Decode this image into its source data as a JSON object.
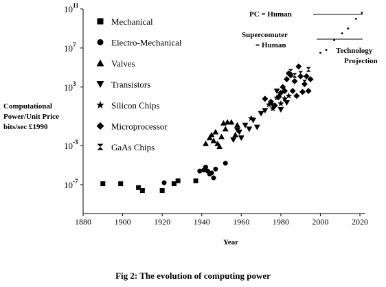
{
  "chart_data": {
    "type": "scatter",
    "title": "",
    "caption": "Fig 2:  The evolution of computing power",
    "xlabel": "Year",
    "ylabel_lines": [
      "Computational",
      "Power/Unit Price",
      "bits/sec £1990"
    ],
    "xlim": [
      1880,
      2020
    ],
    "ylim_log10": [
      -9,
      11
    ],
    "x_ticks": [
      1880,
      1900,
      1920,
      1940,
      1960,
      1980,
      2000,
      2020
    ],
    "y_ticks": [
      {
        "base": "10",
        "exp": "11",
        "log10": 11
      },
      {
        "base": "10",
        "exp": "7",
        "log10": 7
      },
      {
        "base": "10",
        "exp": "3",
        "log10": 3
      },
      {
        "base": "10",
        "exp": "-3",
        "log10": -3
      },
      {
        "base": "10",
        "exp": "-7",
        "log10": -7
      }
    ],
    "legend_position": "top-left",
    "color": "#000000",
    "series": [
      {
        "name": "Mechanical",
        "marker": "square",
        "points": [
          [
            1890,
            -6.9
          ],
          [
            1899,
            -6.9
          ],
          [
            1908,
            -7.3
          ],
          [
            1910,
            -7.6
          ],
          [
            1920,
            -7.6
          ],
          [
            1926,
            -6.9
          ],
          [
            1928,
            -6.6
          ],
          [
            1937,
            -6.6
          ]
        ]
      },
      {
        "name": "Electro-Mechanical",
        "marker": "circle",
        "points": [
          [
            1921,
            -6.8
          ],
          [
            1939,
            -5.6
          ],
          [
            1941,
            -5.5
          ],
          [
            1942,
            -5.2
          ],
          [
            1943,
            -5.6
          ],
          [
            1944,
            -5.9
          ],
          [
            1945,
            -5.8
          ],
          [
            1946,
            -6.3
          ],
          [
            1947,
            -5.4
          ],
          [
            1952,
            -4.8
          ]
        ]
      },
      {
        "name": "Valves",
        "marker": "triangle-up",
        "points": [
          [
            1942,
            -2.8
          ],
          [
            1944,
            -2.2
          ],
          [
            1945,
            -1.9
          ],
          [
            1946,
            -2.5
          ],
          [
            1947,
            -1.6
          ],
          [
            1948,
            -2.8
          ],
          [
            1949,
            -3.1
          ],
          [
            1950,
            -2.1
          ],
          [
            1951,
            -0.7
          ],
          [
            1952,
            -1.3
          ],
          [
            1953,
            -0.6
          ],
          [
            1955,
            -0.6
          ],
          [
            1957,
            -1.9
          ],
          [
            1958,
            -0.9
          ]
        ]
      },
      {
        "name": "Transistors",
        "marker": "triangle-down",
        "points": [
          [
            1956,
            -2.4
          ],
          [
            1958,
            -1.4
          ],
          [
            1959,
            -1.6
          ],
          [
            1960,
            -2.2
          ],
          [
            1962,
            -0.9
          ],
          [
            1964,
            -1.3
          ],
          [
            1966,
            -0.4
          ],
          [
            1968,
            -1.1
          ],
          [
            1970,
            0.3
          ],
          [
            1972,
            0.6
          ],
          [
            1976,
            1.1
          ],
          [
            1978,
            2.6
          ],
          [
            1980,
            0.7
          ],
          [
            1983,
            1.4
          ]
        ]
      },
      {
        "name": "Silicon Chips",
        "marker": "star",
        "points": [
          [
            1965,
            -0.2
          ],
          [
            1974,
            1.2
          ],
          [
            1976,
            0.8
          ],
          [
            1978,
            1.9
          ],
          [
            1980,
            1.3
          ],
          [
            1982,
            1.8
          ],
          [
            1984,
            2.1
          ]
        ]
      },
      {
        "name": "Microprocessor",
        "marker": "diamond",
        "points": [
          [
            1972,
            1.8
          ],
          [
            1975,
            1.5
          ],
          [
            1977,
            1.1
          ],
          [
            1979,
            2.0
          ],
          [
            1980,
            2.4
          ],
          [
            1981,
            3.0
          ],
          [
            1982,
            2.6
          ],
          [
            1983,
            3.8
          ],
          [
            1984,
            4.4
          ],
          [
            1985,
            4.2
          ],
          [
            1986,
            2.6
          ],
          [
            1987,
            3.6
          ],
          [
            1988,
            2.1
          ],
          [
            1989,
            5.1
          ],
          [
            1990,
            4.1
          ],
          [
            1991,
            2.5
          ],
          [
            1992,
            3.3
          ],
          [
            1993,
            4.1
          ],
          [
            1994,
            2.6
          ],
          [
            1995,
            3.8
          ]
        ]
      },
      {
        "name": "GaAs Chips",
        "marker": "hourglass",
        "points": [
          [
            1985,
            4.6
          ],
          [
            1987,
            4.2
          ],
          [
            1990,
            4.4
          ],
          [
            1992,
            3.5
          ],
          [
            1994,
            4.8
          ]
        ]
      }
    ],
    "projection": {
      "points": [
        [
          2000,
          6.5
        ],
        [
          2003,
          6.8
        ],
        [
          2007,
          7.8
        ],
        [
          2011,
          8.5
        ],
        [
          2014,
          9.0
        ],
        [
          2018,
          10.0
        ],
        [
          2021,
          10.6
        ]
      ]
    },
    "annotations": [
      {
        "name": "pc-human",
        "text": "PC = Human",
        "lines": [
          "PC = Human"
        ]
      },
      {
        "name": "supercomputer-human",
        "text": "Supercomuter = Human",
        "lines": [
          "Supercomuter",
          "= Human"
        ]
      },
      {
        "name": "technology-projection",
        "text": "Technology Projection",
        "lines": [
          "Technology",
          "Projection"
        ]
      }
    ]
  }
}
